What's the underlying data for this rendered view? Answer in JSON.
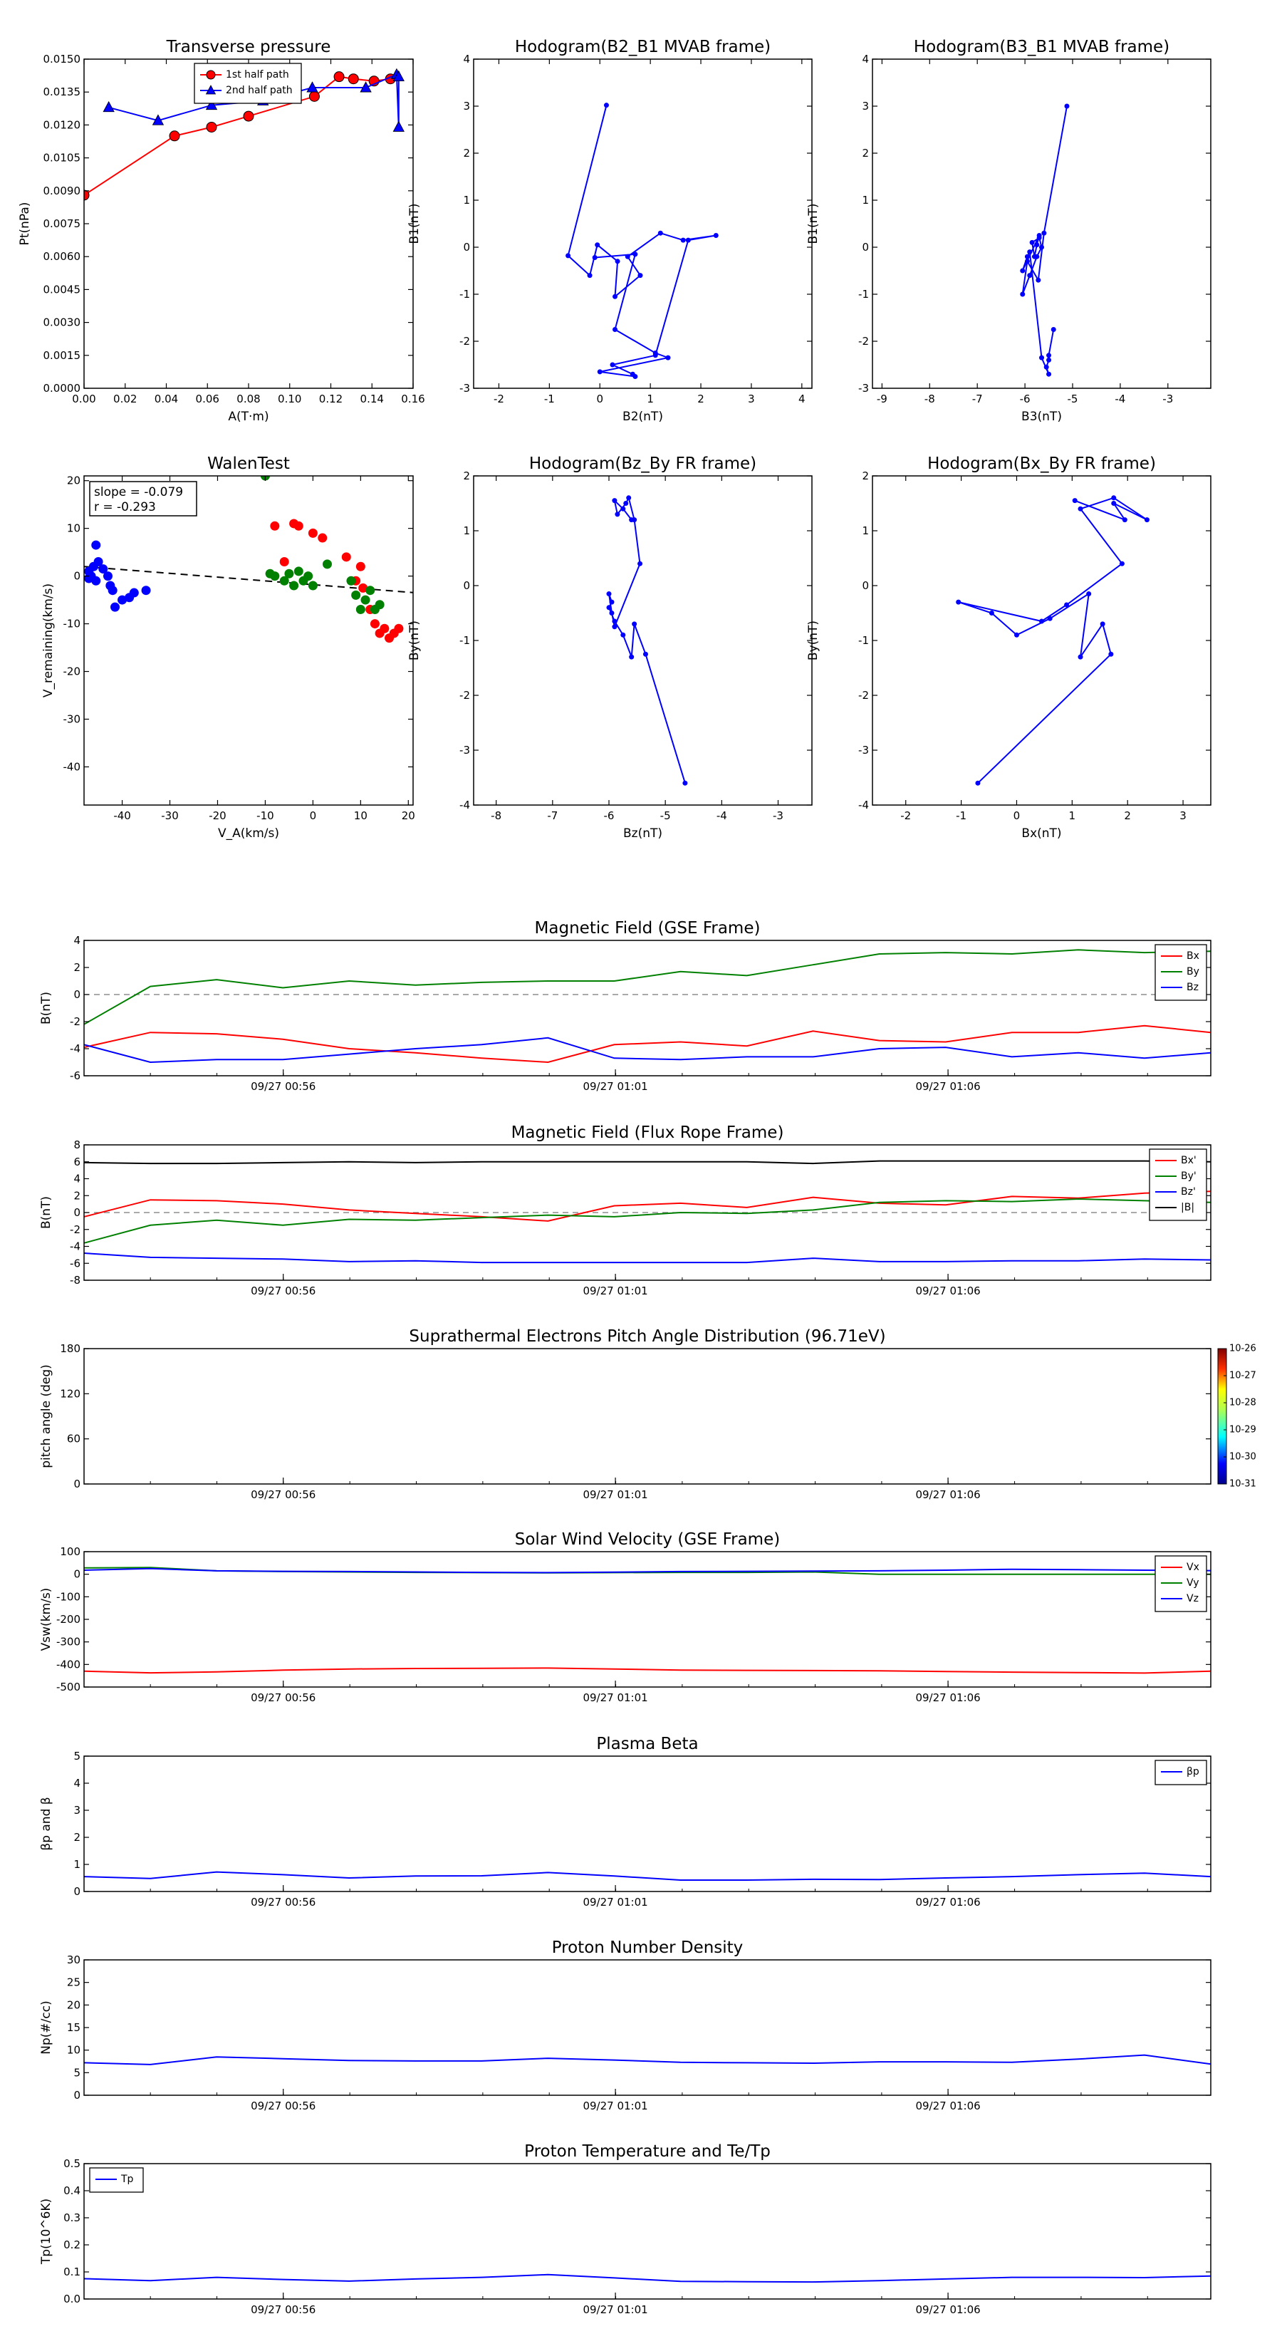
{
  "colors": {
    "red": "#ff0000",
    "green": "#008000",
    "blue": "#0000ff",
    "black": "#000000",
    "gray": "#777777"
  },
  "time_ticks": [
    "09/27 00:56",
    "09/27 01:01",
    "09/27 01:06"
  ],
  "chart_data": [
    {
      "id": "transverse-pressure",
      "type": "line",
      "title": "Transverse pressure",
      "xlabel": "A(T·m)",
      "ylabel": "Pt(nPa)",
      "xlim": [
        0,
        0.16
      ],
      "ylim": [
        0,
        0.015
      ],
      "xticks": [
        0,
        0.02,
        0.04,
        0.06,
        0.08,
        0.1,
        0.12,
        0.14,
        0.16
      ],
      "xticklabels": [
        "0.00",
        "0.02",
        "0.04",
        "0.06",
        "0.08",
        "0.10",
        "0.12",
        "0.14",
        "0.16"
      ],
      "yticks": [
        0,
        0.0015,
        0.003,
        0.0045,
        0.006,
        0.0075,
        0.009,
        0.0105,
        0.012,
        0.0135,
        0.015
      ],
      "yticklabels": [
        "0.0000",
        "0.0015",
        "0.0030",
        "0.0045",
        "0.0060",
        "0.0075",
        "0.0090",
        "0.0105",
        "0.0120",
        "0.0135",
        "0.0150"
      ],
      "legend": {
        "position": "top-center",
        "entries": [
          "1st half path",
          "2nd half path"
        ]
      },
      "series": [
        {
          "name": "1st half path",
          "color": "red",
          "marker": "circle",
          "x": [
            0.0,
            0.044,
            0.062,
            0.08,
            0.112,
            0.124,
            0.131,
            0.141,
            0.149
          ],
          "y": [
            0.0088,
            0.0115,
            0.0119,
            0.0124,
            0.0133,
            0.0142,
            0.0141,
            0.014,
            0.0141
          ]
        },
        {
          "name": "2nd half path",
          "color": "blue",
          "marker": "triangle",
          "x": [
            0.012,
            0.036,
            0.062,
            0.087,
            0.111,
            0.137,
            0.152,
            0.153,
            0.153
          ],
          "y": [
            0.0128,
            0.0122,
            0.0129,
            0.0131,
            0.0137,
            0.0137,
            0.0143,
            0.0119,
            0.0142
          ]
        }
      ]
    },
    {
      "id": "hodogram-b2-b1",
      "type": "line",
      "title": "Hodogram(B2_B1 MVAB frame)",
      "xlabel": "B2(nT)",
      "ylabel": "B1(nT)",
      "xlim": [
        -2.5,
        4.2
      ],
      "ylim": [
        -3,
        4
      ],
      "xticks": [
        -2,
        -1,
        0,
        1,
        2,
        3,
        4
      ],
      "yticks": [
        -3,
        -2,
        -1,
        0,
        1,
        2,
        3,
        4
      ],
      "series": [
        {
          "name": "B2_B1",
          "color": "blue",
          "marker": "dot",
          "x": [
            0.13,
            -0.63,
            -0.2,
            -0.05,
            0.35,
            0.3,
            0.8,
            0.55,
            1.2,
            1.65,
            2.3,
            1.75,
            1.1,
            0.25,
            0.65,
            0.7,
            0.0,
            1.35,
            1.1,
            0.3,
            0.7,
            -0.1
          ],
          "y": [
            3.02,
            -0.18,
            -0.6,
            0.05,
            -0.3,
            -1.05,
            -0.6,
            -0.2,
            0.3,
            0.15,
            0.25,
            0.15,
            -2.3,
            -2.5,
            -2.7,
            -2.75,
            -2.65,
            -2.35,
            -2.25,
            -1.75,
            -0.15,
            -0.22
          ]
        }
      ]
    },
    {
      "id": "hodogram-b3-b1",
      "type": "line",
      "title": "Hodogram(B3_B1 MVAB frame)",
      "xlabel": "B3(nT)",
      "ylabel": "B1(nT)",
      "xlim": [
        -9.2,
        -2.1
      ],
      "ylim": [
        -3,
        4
      ],
      "xticks": [
        -9,
        -8,
        -7,
        -6,
        -5,
        -4,
        -3
      ],
      "yticks": [
        -3,
        -2,
        -1,
        0,
        1,
        2,
        3,
        4
      ],
      "series": [
        {
          "name": "B3_B1",
          "color": "blue",
          "marker": "dot",
          "x": [
            -5.12,
            -5.6,
            -5.72,
            -5.95,
            -6.05,
            -5.9,
            -5.75,
            -5.65,
            -5.7,
            -5.85,
            -5.8,
            -5.75,
            -5.7,
            -6.05,
            -5.95,
            -5.9,
            -5.65,
            -5.5,
            -5.55,
            -5.5,
            -5.5,
            -5.4
          ],
          "y": [
            3.0,
            0.3,
            -0.7,
            -0.3,
            -1.0,
            -0.6,
            -0.2,
            0.0,
            0.2,
            0.1,
            -0.2,
            0.05,
            0.25,
            -0.5,
            -0.2,
            -0.1,
            -2.35,
            -2.7,
            -2.55,
            -2.4,
            -2.3,
            -1.75
          ]
        }
      ]
    },
    {
      "id": "walen-test",
      "type": "scatter",
      "title": "WalenTest",
      "xlabel": "V_A(km/s)",
      "ylabel": "V_remaining(km/s)",
      "xlim": [
        -48,
        21
      ],
      "ylim": [
        -48,
        21
      ],
      "xticks": [
        -40,
        -30,
        -20,
        -10,
        0,
        10,
        20
      ],
      "yticks": [
        -40,
        -30,
        -20,
        -10,
        0,
        10,
        20
      ],
      "annotation": [
        "slope = -0.079",
        "r = -0.293"
      ],
      "fit_line": {
        "slope": -0.079,
        "intercept": -1.8,
        "style": "dashed",
        "color": "black"
      },
      "series": [
        {
          "name": "blue",
          "color": "blue",
          "x": [
            -47,
            -46.5,
            -46,
            -45.5,
            -45,
            -45.5,
            -44,
            -43,
            -42.5,
            -42,
            -41.5,
            -40,
            -38.5,
            -37.5,
            -35,
            -47
          ],
          "y": [
            1,
            0,
            2,
            -1,
            3,
            6.5,
            1.5,
            0,
            -2,
            -3,
            -6.5,
            -5,
            -4.5,
            -3.5,
            -3,
            -0.5
          ]
        },
        {
          "name": "red",
          "color": "red",
          "x": [
            -8,
            -6,
            -4,
            -3,
            0,
            2,
            7,
            9,
            10,
            10.5,
            12,
            13,
            14,
            15,
            16,
            17,
            18
          ],
          "y": [
            10.5,
            3,
            11,
            10.5,
            9,
            8,
            4,
            -1,
            2,
            -2.5,
            -7,
            -10,
            -12,
            -11,
            -13,
            -12,
            -11
          ]
        },
        {
          "name": "green",
          "color": "green",
          "x": [
            -10,
            -8,
            -6,
            -5,
            -4,
            -3,
            -2,
            -1,
            0,
            3,
            8,
            9,
            10,
            11,
            12,
            13,
            14,
            -9
          ],
          "y": [
            21,
            0,
            -1,
            0.5,
            -2,
            1,
            -1,
            0,
            -2,
            2.5,
            -1,
            -4,
            -7,
            -5,
            -3,
            -7,
            -6,
            0.5
          ]
        }
      ]
    },
    {
      "id": "hodogram-bz-by",
      "type": "line",
      "title": "Hodogram(Bz_By FR frame)",
      "xlabel": "Bz(nT)",
      "ylabel": "By(nT)",
      "xlim": [
        -8.4,
        -2.4
      ],
      "ylim": [
        -4,
        2
      ],
      "xticks": [
        -8,
        -7,
        -6,
        -5,
        -4,
        -3
      ],
      "yticks": [
        -4,
        -3,
        -2,
        -1,
        0,
        1,
        2
      ],
      "series": [
        {
          "name": "Bz_By",
          "color": "blue",
          "marker": "dot",
          "x": [
            -4.65,
            -5.35,
            -5.55,
            -5.6,
            -5.75,
            -5.9,
            -6.0,
            -5.95,
            -6.0,
            -5.95,
            -5.9,
            -5.45,
            -5.55,
            -5.65,
            -5.7,
            -5.85,
            -5.9,
            -5.75,
            -5.6
          ],
          "y": [
            -3.6,
            -1.25,
            -0.7,
            -1.3,
            -0.9,
            -0.65,
            -0.4,
            -0.3,
            -0.15,
            -0.5,
            -0.75,
            0.4,
            1.2,
            1.6,
            1.5,
            1.3,
            1.55,
            1.4,
            1.2
          ]
        }
      ]
    },
    {
      "id": "hodogram-bx-by",
      "type": "line",
      "title": "Hodogram(Bx_By FR frame)",
      "xlabel": "Bx(nT)",
      "ylabel": "By(nT)",
      "xlim": [
        -2.6,
        3.5
      ],
      "ylim": [
        -4,
        2
      ],
      "xticks": [
        -2,
        -1,
        0,
        1,
        2,
        3
      ],
      "yticks": [
        -4,
        -3,
        -2,
        -1,
        0,
        1,
        2
      ],
      "series": [
        {
          "name": "Bx_By",
          "color": "blue",
          "marker": "dot",
          "x": [
            -0.7,
            1.7,
            1.55,
            1.15,
            1.3,
            0.6,
            0.0,
            -0.45,
            -1.05,
            0.45,
            0.9,
            1.9,
            1.15,
            1.75,
            2.35,
            1.75,
            1.95,
            1.05
          ],
          "y": [
            -3.6,
            -1.25,
            -0.7,
            -1.3,
            -0.15,
            -0.6,
            -0.9,
            -0.5,
            -0.3,
            -0.65,
            -0.35,
            0.4,
            1.4,
            1.6,
            1.2,
            1.5,
            1.2,
            1.55
          ]
        }
      ]
    },
    {
      "id": "mag-gse",
      "type": "line",
      "title": "Magnetic Field (GSE Frame)",
      "ylabel": "B(nT)",
      "ylim": [
        -6,
        4
      ],
      "yticks": [
        -6,
        -4,
        -2,
        0,
        2,
        4
      ],
      "zero_line": true,
      "legend": {
        "position": "top-right",
        "entries": [
          "Bx",
          "By",
          "Bz"
        ]
      },
      "series": [
        {
          "name": "Bx",
          "color": "red",
          "values": [
            -3.9,
            -2.8,
            -2.9,
            -3.3,
            -4.0,
            -4.3,
            -4.7,
            -5.0,
            -3.7,
            -3.5,
            -3.8,
            -2.7,
            -3.4,
            -3.5,
            -2.8,
            -2.8,
            -2.3,
            -2.8
          ]
        },
        {
          "name": "By",
          "color": "green",
          "values": [
            -2.2,
            0.6,
            1.1,
            0.5,
            1.0,
            0.7,
            0.9,
            1.0,
            1.0,
            1.7,
            1.4,
            2.2,
            3.0,
            3.1,
            3.0,
            3.3,
            3.1,
            3.2
          ]
        },
        {
          "name": "Bz",
          "color": "blue",
          "values": [
            -3.7,
            -5.0,
            -4.8,
            -4.8,
            -4.4,
            -4.0,
            -3.7,
            -3.2,
            -4.7,
            -4.8,
            -4.6,
            -4.6,
            -4.0,
            -3.9,
            -4.6,
            -4.3,
            -4.7,
            -4.3
          ]
        }
      ]
    },
    {
      "id": "mag-fr",
      "type": "line",
      "title": "Magnetic Field (Flux Rope Frame)",
      "ylabel": "B(nT)",
      "ylim": [
        -8,
        8
      ],
      "yticks": [
        -8,
        -6,
        -4,
        -2,
        0,
        2,
        4,
        6,
        8
      ],
      "zero_line": true,
      "legend": {
        "position": "top-right",
        "entries": [
          "Bx'",
          "By'",
          "Bz'",
          "|B|"
        ]
      },
      "series": [
        {
          "name": "Bx'",
          "color": "red",
          "values": [
            -0.5,
            1.5,
            1.4,
            1.0,
            0.3,
            -0.1,
            -0.5,
            -1.0,
            0.8,
            1.1,
            0.6,
            1.8,
            1.1,
            0.9,
            1.9,
            1.7,
            2.3,
            2.5
          ]
        },
        {
          "name": "By'",
          "color": "green",
          "values": [
            -3.6,
            -1.5,
            -0.9,
            -1.5,
            -0.8,
            -0.9,
            -0.6,
            -0.3,
            -0.5,
            0.0,
            -0.1,
            0.3,
            1.2,
            1.4,
            1.3,
            1.6,
            1.4,
            1.2
          ]
        },
        {
          "name": "Bz'",
          "color": "blue",
          "values": [
            -4.8,
            -5.3,
            -5.4,
            -5.5,
            -5.8,
            -5.7,
            -5.9,
            -5.9,
            -5.9,
            -5.9,
            -5.9,
            -5.4,
            -5.8,
            -5.8,
            -5.7,
            -5.7,
            -5.5,
            -5.6
          ]
        },
        {
          "name": "|B|",
          "color": "black",
          "values": [
            5.9,
            5.8,
            5.8,
            5.9,
            6.0,
            5.9,
            6.0,
            6.0,
            6.0,
            6.0,
            6.0,
            5.8,
            6.1,
            6.1,
            6.1,
            6.1,
            6.1,
            6.0
          ]
        }
      ]
    },
    {
      "id": "pitch-angle",
      "type": "heatmap",
      "title": "Suprathermal Electrons Pitch Angle Distribution (96.71eV)",
      "ylabel": "pitch angle (deg)",
      "ylim": [
        0,
        180
      ],
      "yticks": [
        0,
        60,
        120,
        180
      ],
      "colorbar": {
        "labels": [
          "10-26",
          "10-27",
          "10-28",
          "10-29",
          "10-30",
          "10-31"
        ]
      }
    },
    {
      "id": "solar-wind",
      "type": "line",
      "title": "Solar Wind Velocity (GSE Frame)",
      "ylabel": "Vsw(km/s)",
      "ylim": [
        -500,
        100
      ],
      "yticks": [
        -500,
        -400,
        -300,
        -200,
        -100,
        0,
        100
      ],
      "legend": {
        "position": "top-right",
        "entries": [
          "Vx",
          "Vy",
          "Vz"
        ]
      },
      "series": [
        {
          "name": "Vx",
          "color": "red",
          "values": [
            -430,
            -437,
            -433,
            -425,
            -420,
            -418,
            -417,
            -416,
            -420,
            -425,
            -426,
            -427,
            -428,
            -431,
            -434,
            -436,
            -438,
            -430
          ]
        },
        {
          "name": "Vy",
          "color": "green",
          "values": [
            28,
            30,
            15,
            12,
            10,
            8,
            7,
            6,
            7,
            8,
            8,
            10,
            0,
            0,
            0,
            0,
            0,
            0
          ]
        },
        {
          "name": "Vz",
          "color": "blue",
          "values": [
            18,
            25,
            15,
            13,
            12,
            10,
            8,
            7,
            9,
            12,
            13,
            14,
            15,
            18,
            22,
            20,
            18,
            16
          ]
        }
      ]
    },
    {
      "id": "plasma-beta",
      "type": "line",
      "title": "Plasma Beta",
      "ylabel": "βp and β",
      "ylim": [
        0,
        5
      ],
      "yticks": [
        0,
        1,
        2,
        3,
        4,
        5
      ],
      "legend": {
        "position": "top-right",
        "entries": [
          "βp"
        ]
      },
      "series": [
        {
          "name": "βp",
          "color": "blue",
          "values": [
            0.55,
            0.48,
            0.72,
            0.62,
            0.5,
            0.57,
            0.58,
            0.7,
            0.57,
            0.42,
            0.42,
            0.45,
            0.44,
            0.5,
            0.55,
            0.62,
            0.68,
            0.55
          ]
        }
      ]
    },
    {
      "id": "proton-density",
      "type": "line",
      "title": "Proton Number Density",
      "ylabel": "Np(#/cc)",
      "ylim": [
        0,
        30
      ],
      "yticks": [
        0,
        5,
        10,
        15,
        20,
        25,
        30
      ],
      "series": [
        {
          "name": "Np",
          "color": "blue",
          "values": [
            7.2,
            6.8,
            8.5,
            8.1,
            7.7,
            7.6,
            7.6,
            8.2,
            7.8,
            7.3,
            7.2,
            7.1,
            7.4,
            7.4,
            7.3,
            8.0,
            8.9,
            6.9
          ]
        }
      ]
    },
    {
      "id": "proton-temp",
      "type": "line",
      "title": "Proton Temperature and Te/Tp",
      "ylabel": "Tp(10^6K)",
      "ylim": [
        0,
        0.5
      ],
      "yticks": [
        0,
        0.1,
        0.2,
        0.3,
        0.4,
        0.5
      ],
      "yticklabels": [
        "0.0",
        "0.1",
        "0.2",
        "0.3",
        "0.4",
        "0.5"
      ],
      "legend": {
        "position": "top-left",
        "entries": [
          "Tp"
        ]
      },
      "series": [
        {
          "name": "Tp",
          "color": "blue",
          "values": [
            0.075,
            0.068,
            0.08,
            0.072,
            0.066,
            0.074,
            0.08,
            0.09,
            0.078,
            0.065,
            0.064,
            0.063,
            0.068,
            0.074,
            0.08,
            0.08,
            0.079,
            0.085
          ]
        }
      ]
    }
  ]
}
